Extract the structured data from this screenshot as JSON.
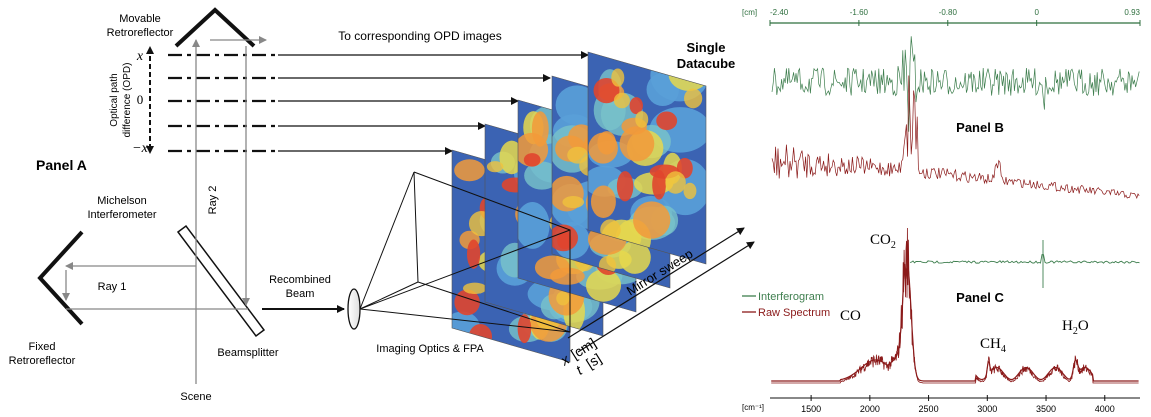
{
  "panel_a": {
    "panel_label": "Panel A",
    "movable_retroreflector": [
      "Movable",
      "Retroreflector"
    ],
    "fixed_retroreflector": [
      "Fixed",
      "Retroreflector"
    ],
    "opd_axis_label": [
      "Optical path",
      "difference (OPD)"
    ],
    "opd_top": "x",
    "opd_mid": "0",
    "opd_bottom": "−x",
    "to_opd_images": "To corresponding OPD images",
    "datacube": [
      "Single",
      "Datacube"
    ],
    "michelson": [
      "Michelson",
      "Interferometer"
    ],
    "ray_1": "Ray 1",
    "ray_2": "Ray 2",
    "recombined_beam": [
      "Recombined",
      "Beam"
    ],
    "beamsplitter": "Beamsplitter",
    "scene": "Scene",
    "imaging_optics": "Imaging Optics & FPA",
    "mirror_sweep": "Mirror sweep",
    "axis_x": "x",
    "axis_x_unit": "[cm]",
    "axis_t": "t",
    "axis_t_unit": "[s]"
  },
  "panel_b": {
    "panel_label": "Panel B",
    "unit": "[cm]",
    "ticks": [
      "-2.40",
      "-1.60",
      "-0.80",
      "0",
      "0.93"
    ]
  },
  "panel_c": {
    "panel_label": "Panel C",
    "unit": "[cm⁻¹]",
    "ticks": [
      "1500",
      "2000",
      "2500",
      "3000",
      "3500",
      "4000"
    ],
    "legend_interferogram": "Interferogram",
    "legend_raw": "Raw Spectrum",
    "label_co2": "CO",
    "label_co2_sub": "2",
    "label_co": "CO",
    "label_ch4": "CH",
    "label_ch4_sub": "4",
    "label_h2o": "H",
    "label_h2o_sub": "2",
    "label_h2o_tail": "O"
  },
  "colors": {
    "interferogram": "#3f7f4f",
    "raw_spectrum": "#8b1a1a",
    "axis_green": "#2f6f3f"
  },
  "chart_data": [
    {
      "type": "line",
      "xlabel": "[cm]",
      "xlim": [
        -2.4,
        0.93
      ],
      "xticks": [
        -2.4,
        -1.6,
        -0.8,
        0,
        0.93
      ],
      "series": []
    },
    {
      "type": "line",
      "xlabel": "[cm⁻¹]",
      "xlim": [
        1150,
        4300
      ],
      "xticks": [
        1500,
        2000,
        2500,
        3000,
        3500,
        4000
      ],
      "series": [
        {
          "name": "Interferogram",
          "color": "#3f7f4f"
        },
        {
          "name": "Raw Spectrum",
          "color": "#8b1a1a"
        }
      ],
      "annotations": [
        "CO2",
        "CO",
        "CH4",
        "H2O"
      ]
    }
  ]
}
